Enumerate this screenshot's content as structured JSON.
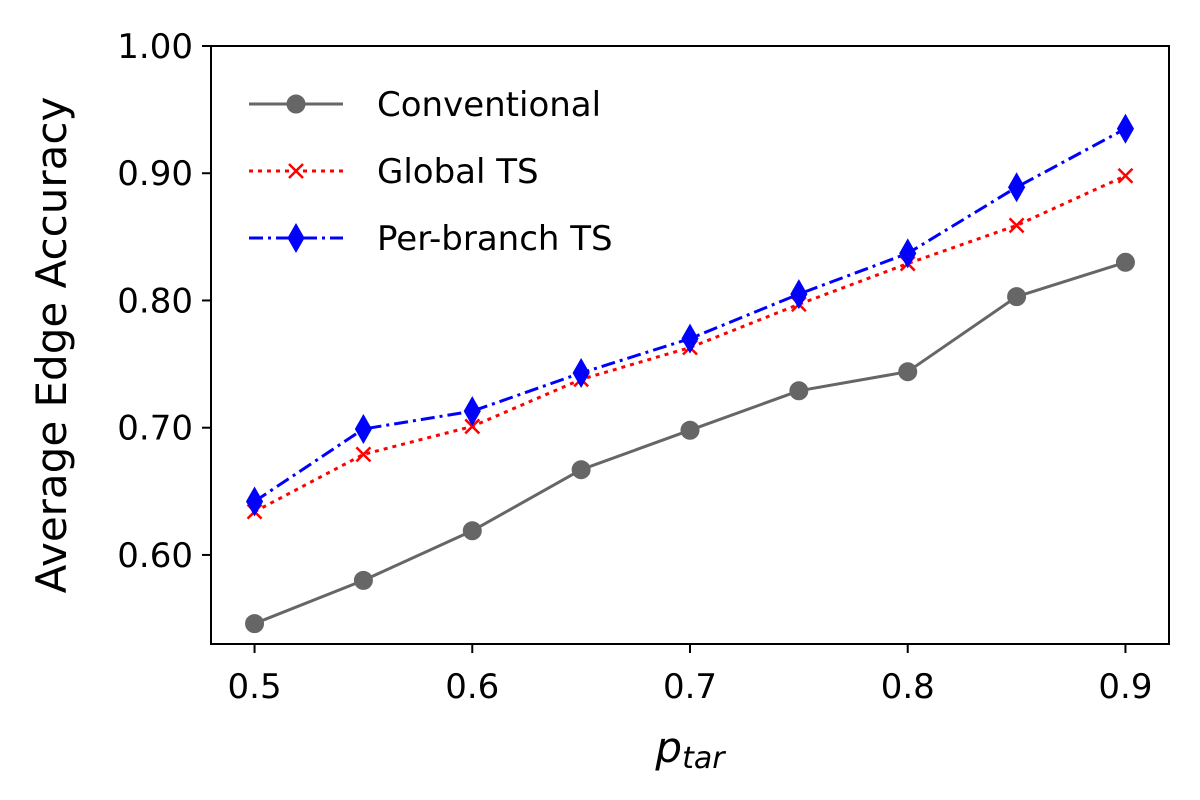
{
  "chart_data": {
    "type": "line",
    "xlabel": "p_tar",
    "xlabel_main": "p",
    "xlabel_sub": "tar",
    "ylabel": "Average Edge Accuracy",
    "x": [
      0.5,
      0.55,
      0.6,
      0.65,
      0.7,
      0.75,
      0.8,
      0.85,
      0.9
    ],
    "xlim": [
      0.48,
      0.92
    ],
    "ylim": [
      0.53,
      1.0
    ],
    "xticks": [
      0.5,
      0.6,
      0.7,
      0.8,
      0.9
    ],
    "xtick_labels": [
      "0.5",
      "0.6",
      "0.7",
      "0.8",
      "0.9"
    ],
    "yticks": [
      0.6,
      0.7,
      0.8,
      0.9,
      1.0
    ],
    "ytick_labels": [
      "0.60",
      "0.70",
      "0.80",
      "0.90",
      "1.00"
    ],
    "grid": false,
    "legend_position": "top-left",
    "series": [
      {
        "name": "Conventional",
        "color": "#666666",
        "marker": "circle",
        "linestyle": "solid",
        "values": [
          0.546,
          0.58,
          0.619,
          0.667,
          0.698,
          0.729,
          0.744,
          0.803,
          0.83
        ]
      },
      {
        "name": "Global TS",
        "color": "#ff0000",
        "marker": "x",
        "linestyle": "dotted",
        "values": [
          0.634,
          0.679,
          0.701,
          0.738,
          0.763,
          0.797,
          0.829,
          0.859,
          0.898
        ]
      },
      {
        "name": "Per-branch TS",
        "color": "#0000ff",
        "marker": "thin-diamond",
        "linestyle": "dashdot",
        "values": [
          0.642,
          0.699,
          0.713,
          0.743,
          0.77,
          0.805,
          0.837,
          0.889,
          0.935
        ]
      }
    ]
  }
}
